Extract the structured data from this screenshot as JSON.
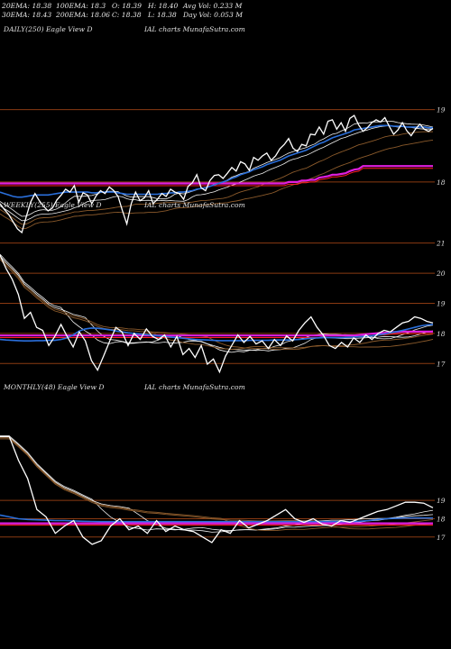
{
  "header": {
    "stats": [
      {
        "key": "ema20",
        "text": "20EMA: 18.38"
      },
      {
        "key": "ema100",
        "text": "100EMA: 18.3"
      },
      {
        "key": "open",
        "text": "O: 18.39"
      },
      {
        "key": "high",
        "text": "H: 18.40"
      },
      {
        "key": "avgvol",
        "text": "Avg Vol: 0.233 M"
      },
      {
        "key": "ema30",
        "text": "30EMA: 18.43"
      },
      {
        "key": "ema200",
        "text": "200EMA: 18.06"
      },
      {
        "key": "close",
        "text": "C: 18.38"
      },
      {
        "key": "low",
        "text": "L: 18.38"
      },
      {
        "key": "dayvol",
        "text": "Day Vol: 0.053 M"
      }
    ]
  },
  "colors": {
    "background": "#000000",
    "price": "#ffffff",
    "ema_blue": "#2a6fdb",
    "support_magenta": "#e21ee0",
    "red_line": "#ff2020",
    "grid_brown": "#8a3a12",
    "ma_white": "#f0f0f0",
    "ma_brown": "#8b5a2b"
  },
  "chart_data": [
    {
      "type": "line",
      "title_left": "DAILY(250) Eagle   View  D",
      "title_right": "IAL  charts MunafaSutra.com",
      "y_ticks": [
        18,
        19
      ],
      "ylim": [
        17.3,
        19.37
      ],
      "series": [
        {
          "role": "price",
          "values": [
            17.7,
            17.62,
            17.55,
            17.45,
            17.35,
            17.3,
            17.52,
            17.72,
            17.84,
            17.74,
            17.66,
            17.6,
            17.64,
            17.75,
            17.82,
            17.9,
            17.86,
            17.95,
            17.72,
            17.85,
            17.82,
            17.7,
            17.81,
            17.88,
            17.84,
            17.93,
            17.88,
            17.8,
            17.6,
            17.42,
            17.7,
            17.86,
            17.74,
            17.78,
            17.88,
            17.7,
            17.76,
            17.84,
            17.8,
            17.9,
            17.86,
            17.84,
            17.76,
            17.94,
            17.99,
            18.1,
            17.92,
            17.88,
            18.02,
            18.09,
            18.1,
            18.05,
            18.12,
            18.2,
            18.15,
            18.28,
            18.25,
            18.16,
            18.34,
            18.3,
            18.36,
            18.4,
            18.3,
            18.36,
            18.46,
            18.52,
            18.6,
            18.47,
            18.42,
            18.52,
            18.5,
            18.66,
            18.65,
            18.76,
            18.66,
            18.84,
            18.86,
            18.73,
            18.82,
            18.7,
            18.88,
            18.92,
            18.79,
            18.7,
            18.75,
            18.82,
            18.86,
            18.83,
            18.89,
            18.77,
            18.66,
            18.72,
            18.82,
            18.71,
            18.64,
            18.73,
            18.8,
            18.73,
            18.7,
            18.74
          ]
        },
        {
          "role": "ema-blue",
          "values": [
            17.86,
            17.84,
            17.82,
            17.8,
            17.79,
            17.79,
            17.8,
            17.81,
            17.82,
            17.82,
            17.82,
            17.82,
            17.83,
            17.84,
            17.85,
            17.86,
            17.86,
            17.86,
            17.86,
            17.86,
            17.86,
            17.85,
            17.85,
            17.86,
            17.86,
            17.86,
            17.86,
            17.85,
            17.84,
            17.83,
            17.83,
            17.83,
            17.83,
            17.83,
            17.83,
            17.83,
            17.83,
            17.84,
            17.84,
            17.85,
            17.85,
            17.86,
            17.86,
            17.87,
            17.88,
            17.9,
            17.91,
            17.92,
            17.94,
            17.96,
            17.98,
            18.0,
            18.02,
            18.05,
            18.07,
            18.1,
            18.12,
            18.14,
            18.17,
            18.19,
            18.21,
            18.24,
            18.26,
            18.28,
            18.3,
            18.33,
            18.36,
            18.38,
            18.4,
            18.42,
            18.44,
            18.47,
            18.5,
            18.53,
            18.55,
            18.58,
            18.61,
            18.63,
            18.65,
            18.67,
            18.69,
            18.72,
            18.73,
            18.74,
            18.75,
            18.76,
            18.77,
            18.78,
            18.78,
            18.78,
            18.77,
            18.77,
            18.77,
            18.76,
            18.76,
            18.76,
            18.76,
            18.76,
            18.75,
            18.75
          ]
        },
        {
          "role": "support-magenta",
          "values": [
            17.98,
            17.98,
            17.98,
            17.98,
            17.98,
            17.98,
            17.98,
            17.98,
            17.98,
            17.98,
            17.98,
            17.98,
            17.98,
            17.98,
            17.98,
            17.98,
            17.98,
            17.98,
            17.98,
            17.98,
            17.98,
            17.98,
            17.98,
            17.98,
            17.98,
            17.98,
            17.98,
            17.98,
            17.98,
            17.98,
            17.98,
            17.98,
            17.98,
            17.98,
            17.98,
            17.98,
            17.98,
            17.98,
            17.98,
            17.98,
            17.98,
            17.98,
            17.98,
            17.98,
            17.98,
            17.98,
            17.98,
            17.98,
            17.98,
            17.98,
            17.98,
            17.98,
            17.98,
            17.98,
            17.98,
            17.98,
            17.98,
            17.98,
            17.98,
            17.98,
            17.98,
            17.98,
            17.98,
            17.98,
            17.98,
            17.98,
            18.0,
            18.0,
            18.0,
            18.02,
            18.02,
            18.03,
            18.03,
            18.06,
            18.07,
            18.08,
            18.1,
            18.1,
            18.11,
            18.12,
            18.15,
            18.17,
            18.18,
            18.22,
            18.22,
            18.22,
            18.22,
            18.22,
            18.22,
            18.22,
            18.22,
            18.22,
            18.22,
            18.22,
            18.22,
            18.22,
            18.22,
            18.22,
            18.22,
            18.22
          ]
        }
      ]
    },
    {
      "type": "line",
      "title_left": "WEEKLY(255) Eagle   View  D",
      "title_right": "IAL  charts MunafaSutra.com",
      "y_ticks": [
        17,
        18,
        19,
        20,
        21
      ],
      "ylim": [
        16.5,
        21.05
      ],
      "series": [
        {
          "role": "price",
          "values": [
            20.6,
            20.15,
            19.8,
            19.3,
            18.5,
            18.7,
            18.2,
            18.1,
            17.6,
            17.9,
            18.3,
            17.9,
            17.55,
            18.05,
            17.75,
            17.1,
            16.78,
            17.25,
            17.75,
            18.2,
            18.05,
            17.6,
            18.0,
            17.8,
            18.15,
            17.9,
            17.8,
            17.95,
            17.55,
            17.9,
            17.3,
            17.5,
            17.2,
            17.6,
            16.98,
            17.15,
            16.72,
            17.25,
            17.6,
            17.95,
            17.7,
            17.9,
            17.65,
            17.75,
            17.5,
            17.8,
            17.6,
            17.92,
            17.75,
            18.1,
            18.35,
            18.55,
            18.2,
            17.95,
            17.6,
            17.5,
            17.7,
            17.55,
            17.85,
            17.7,
            17.95,
            17.8,
            18.0,
            18.1,
            18.05,
            18.2,
            18.35,
            18.4,
            18.55,
            18.5,
            18.4,
            18.35
          ]
        },
        {
          "role": "ema-blue",
          "values": [
            17.8,
            17.78,
            17.77,
            17.76,
            17.75,
            17.75,
            17.76,
            17.76,
            17.77,
            17.77,
            17.8,
            17.85,
            17.95,
            18.08,
            18.15,
            18.18,
            18.17,
            18.15,
            18.12,
            18.08,
            18.05,
            18.02,
            18.0,
            17.98,
            17.96,
            17.94,
            17.92,
            17.9,
            17.88,
            17.86,
            17.84,
            17.82,
            17.8,
            17.79,
            17.78,
            17.77,
            17.76,
            17.76,
            17.76,
            17.76,
            17.76,
            17.77,
            17.77,
            17.77,
            17.77,
            17.78,
            17.78,
            17.78,
            17.79,
            17.8,
            17.82,
            17.84,
            17.85,
            17.86,
            17.86,
            17.86,
            17.86,
            17.87,
            17.88,
            17.89,
            17.9,
            17.92,
            17.95,
            17.98,
            18.02,
            18.06,
            18.1,
            18.15,
            18.2,
            18.25,
            18.28,
            18.3
          ]
        },
        {
          "role": "support-magenta",
          "values": [
            17.93,
            17.93,
            17.93,
            17.93,
            17.93,
            17.93,
            17.93,
            17.93,
            17.93,
            17.93,
            17.93,
            17.93,
            17.93,
            17.93,
            17.93,
            17.93,
            17.93,
            17.93,
            17.93,
            17.93,
            17.93,
            17.93,
            17.93,
            17.93,
            17.93,
            17.93,
            17.93,
            17.93,
            17.93,
            17.93,
            17.93,
            17.93,
            17.93,
            17.93,
            17.93,
            17.93,
            17.93,
            17.93,
            17.93,
            17.93,
            17.93,
            17.93,
            17.93,
            17.93,
            17.93,
            17.93,
            17.93,
            17.93,
            17.93,
            17.93,
            17.93,
            17.93,
            17.93,
            17.93,
            17.93,
            17.93,
            17.93,
            17.93,
            17.93,
            17.95,
            17.97,
            17.99,
            18.01,
            18.02,
            18.04,
            18.05,
            18.06,
            18.06,
            18.06,
            18.06,
            18.06,
            18.06
          ]
        }
      ]
    },
    {
      "type": "line",
      "title_left": "MONTHLY(48) Eagle   View  D",
      "title_right": "IAL  charts MunafaSutra.com",
      "y_ticks": [
        17,
        18,
        19
      ],
      "ylim": [
        16.3,
        22.8
      ],
      "series": [
        {
          "role": "price",
          "values": [
            22.5,
            22.5,
            21.2,
            20.2,
            18.5,
            18.1,
            17.2,
            17.6,
            17.9,
            17.0,
            16.6,
            16.8,
            17.6,
            18.0,
            17.4,
            17.6,
            17.2,
            17.9,
            17.3,
            17.6,
            17.4,
            17.3,
            17.0,
            16.7,
            17.4,
            17.2,
            17.9,
            17.5,
            17.7,
            17.9,
            18.2,
            18.5,
            18.0,
            17.8,
            18.0,
            17.7,
            17.6,
            17.9,
            17.8,
            18.0,
            18.2,
            18.4,
            18.5,
            18.7,
            18.9,
            18.9,
            18.85,
            18.6
          ]
        },
        {
          "role": "ema-blue",
          "values": [
            18.2,
            18.1,
            18.0,
            17.96,
            17.94,
            17.92,
            17.9,
            17.9,
            17.88,
            17.86,
            17.85,
            17.84,
            17.84,
            17.84,
            17.84,
            17.84,
            17.84,
            17.84,
            17.84,
            17.84,
            17.84,
            17.84,
            17.84,
            17.84,
            17.84,
            17.84,
            17.84,
            17.84,
            17.84,
            17.84,
            17.84,
            17.84,
            17.84,
            17.84,
            17.84,
            17.84,
            17.84,
            17.84,
            17.84,
            17.86,
            17.9,
            17.96,
            18.0,
            18.02,
            18.04,
            18.04,
            18.04,
            18.04
          ]
        },
        {
          "role": "support-magenta",
          "values": [
            17.75,
            17.75,
            17.75,
            17.75,
            17.75,
            17.75,
            17.75,
            17.75,
            17.75,
            17.75,
            17.75,
            17.75,
            17.75,
            17.75,
            17.75,
            17.75,
            17.75,
            17.75,
            17.75,
            17.75,
            17.75,
            17.75,
            17.75,
            17.75,
            17.75,
            17.75,
            17.75,
            17.75,
            17.75,
            17.75,
            17.75,
            17.75,
            17.75,
            17.75,
            17.75,
            17.75,
            17.75,
            17.75,
            17.75,
            17.75,
            17.75,
            17.75,
            17.75,
            17.75,
            17.75,
            17.75,
            17.75,
            17.75
          ]
        }
      ]
    }
  ]
}
